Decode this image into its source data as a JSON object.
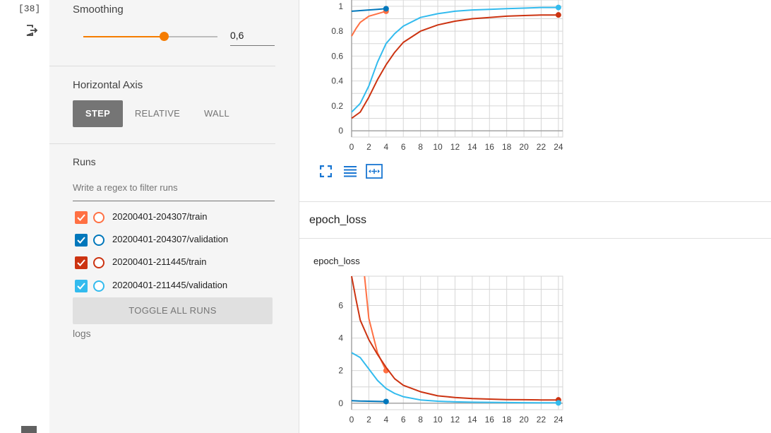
{
  "cell": {
    "number": "[38]"
  },
  "sidebar": {
    "smoothing": {
      "title": "Smoothing",
      "value": "0,6",
      "level": 0.6
    },
    "horizontal_axis": {
      "title": "Horizontal Axis",
      "options": [
        "STEP",
        "RELATIVE",
        "WALL"
      ],
      "selected": "STEP"
    },
    "runs": {
      "title": "Runs",
      "filter_placeholder": "Write a regex to filter runs",
      "items": [
        {
          "label": "20200401-204307/train",
          "color": "#ff7043",
          "checked": true
        },
        {
          "label": "20200401-204307/validation",
          "color": "#0077bb",
          "checked": true
        },
        {
          "label": "20200401-211445/train",
          "color": "#cc3311",
          "checked": true
        },
        {
          "label": "20200401-211445/validation",
          "color": "#33bbee",
          "checked": true
        }
      ],
      "toggle_label": "TOGGLE ALL RUNS",
      "logs_label": "logs"
    }
  },
  "main": {
    "section_title": "epoch_loss",
    "loss_chart_title": "epoch_loss"
  },
  "chart_data": [
    {
      "type": "line",
      "title": "",
      "x_ticks": [
        "0",
        "2",
        "4",
        "6",
        "8",
        "10",
        "12",
        "14",
        "16",
        "18",
        "20",
        "22",
        "24"
      ],
      "y_ticks": [
        "0",
        "0.2",
        "0.4",
        "0.6",
        "0.8",
        "1"
      ],
      "xlim": [
        0,
        24.5
      ],
      "ylim": [
        -0.05,
        1.05
      ],
      "series": [
        {
          "name": "20200401-204307/train",
          "color": "#ff7043",
          "x": [
            0,
            0.5,
            1,
            2,
            3,
            4
          ],
          "y": [
            0.76,
            0.82,
            0.87,
            0.92,
            0.94,
            0.96
          ]
        },
        {
          "name": "20200401-204307/validation",
          "color": "#0077bb",
          "x": [
            0,
            1,
            2,
            3,
            4
          ],
          "y": [
            0.96,
            0.965,
            0.97,
            0.975,
            0.98
          ]
        },
        {
          "name": "20200401-211445/train",
          "color": "#cc3311",
          "x": [
            0,
            1,
            2,
            3,
            4,
            5,
            6,
            8,
            10,
            12,
            14,
            16,
            18,
            20,
            22,
            24
          ],
          "y": [
            0.1,
            0.15,
            0.27,
            0.41,
            0.53,
            0.63,
            0.71,
            0.8,
            0.85,
            0.88,
            0.9,
            0.91,
            0.92,
            0.925,
            0.93,
            0.93
          ]
        },
        {
          "name": "20200401-211445/validation",
          "color": "#33bbee",
          "x": [
            0,
            1,
            2,
            3,
            4,
            5,
            6,
            8,
            10,
            12,
            14,
            16,
            18,
            20,
            22,
            24
          ],
          "y": [
            0.15,
            0.22,
            0.36,
            0.55,
            0.7,
            0.78,
            0.84,
            0.91,
            0.94,
            0.96,
            0.97,
            0.975,
            0.98,
            0.985,
            0.99,
            0.99
          ]
        }
      ]
    },
    {
      "type": "line",
      "title": "epoch_loss",
      "x_ticks": [
        "0",
        "2",
        "4",
        "6",
        "8",
        "10",
        "12",
        "14",
        "16",
        "18",
        "20",
        "22",
        "24"
      ],
      "y_ticks": [
        "0",
        "2",
        "4",
        "6"
      ],
      "xlim": [
        0,
        24.5
      ],
      "ylim": [
        -0.4,
        7.8
      ],
      "series": [
        {
          "name": "20200401-204307/train",
          "color": "#ff7043",
          "x": [
            1.5,
            2,
            3,
            4
          ],
          "y": [
            7.8,
            5.2,
            3.1,
            2.0
          ]
        },
        {
          "name": "20200401-204307/validation",
          "color": "#0077bb",
          "x": [
            0,
            1,
            2,
            3,
            4
          ],
          "y": [
            0.15,
            0.13,
            0.12,
            0.11,
            0.1
          ]
        },
        {
          "name": "20200401-211445/train",
          "color": "#cc3311",
          "x": [
            0,
            0.5,
            1,
            2,
            3,
            4,
            5,
            6,
            8,
            10,
            12,
            14,
            16,
            18,
            20,
            22,
            24
          ],
          "y": [
            7.8,
            6.4,
            5.1,
            3.9,
            3.0,
            2.2,
            1.5,
            1.1,
            0.7,
            0.45,
            0.35,
            0.28,
            0.25,
            0.22,
            0.21,
            0.2,
            0.2
          ]
        },
        {
          "name": "20200401-211445/validation",
          "color": "#33bbee",
          "x": [
            0,
            1,
            2,
            3,
            4,
            5,
            6,
            8,
            10,
            12,
            14,
            16,
            18,
            20,
            22,
            24
          ],
          "y": [
            3.1,
            2.8,
            2.1,
            1.4,
            0.9,
            0.6,
            0.4,
            0.2,
            0.12,
            0.08,
            0.06,
            0.05,
            0.04,
            0.03,
            0.02,
            0.02
          ]
        }
      ]
    }
  ]
}
